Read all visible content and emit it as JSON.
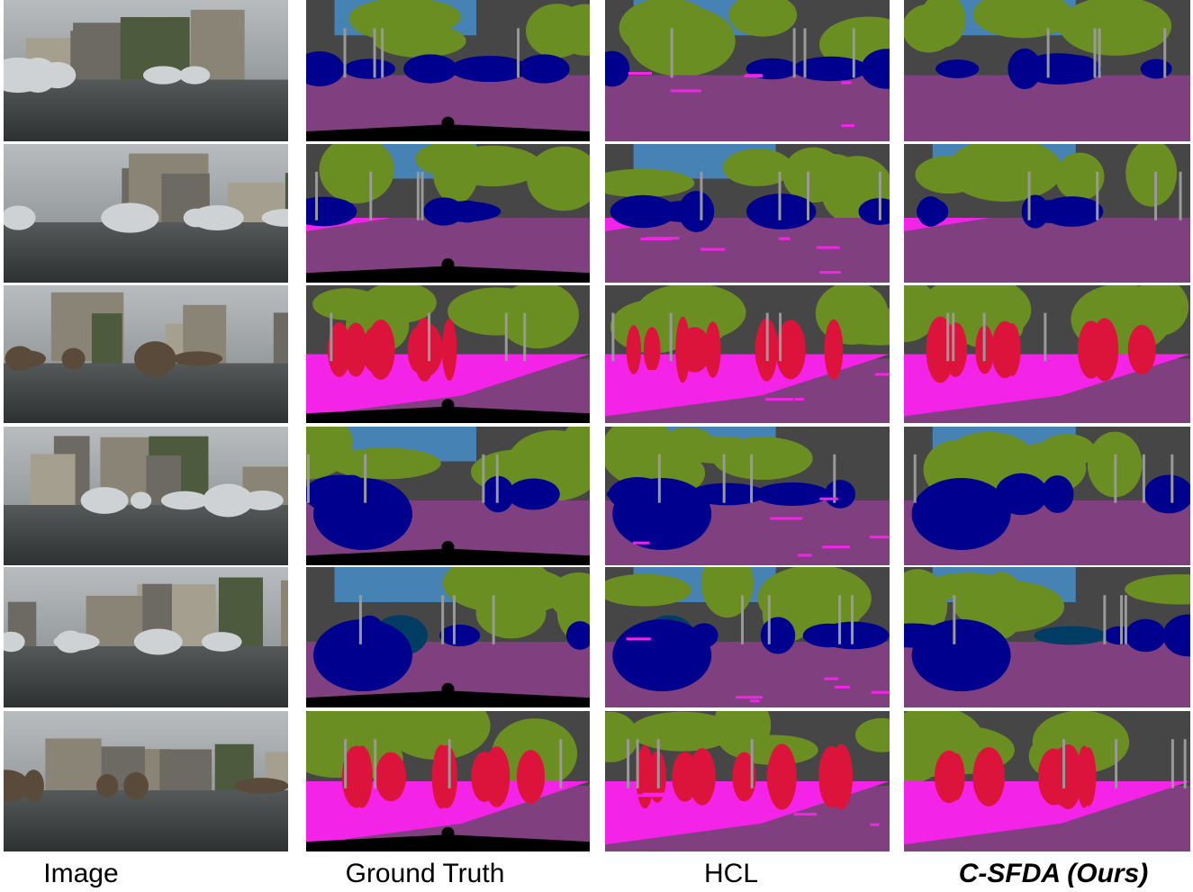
{
  "columns": [
    "Image",
    "Ground Truth",
    "HCL",
    "C-SFDA (Ours)"
  ]
}
